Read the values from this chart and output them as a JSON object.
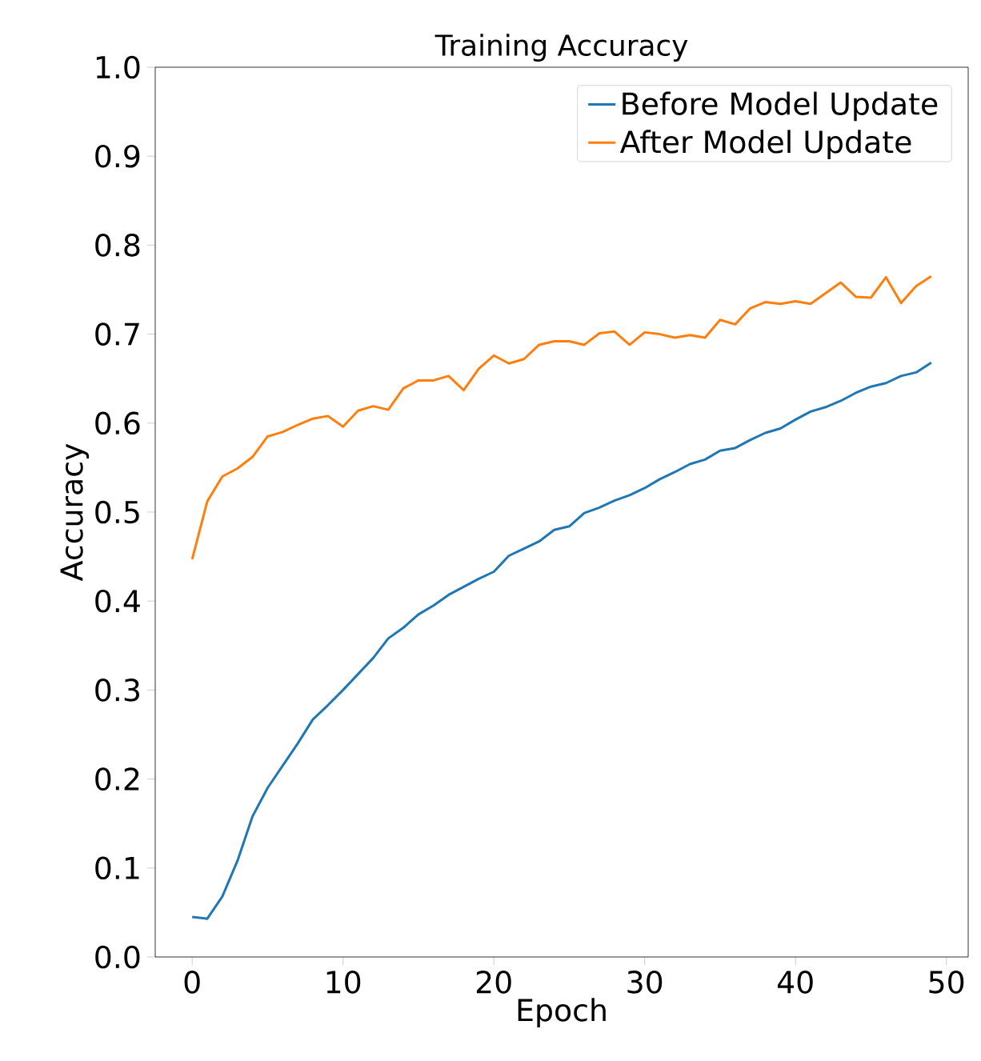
{
  "chart_data": {
    "type": "line",
    "title": "Training Accuracy",
    "xlabel": "Epoch",
    "ylabel": "Accuracy",
    "x": [
      0,
      1,
      2,
      3,
      4,
      5,
      6,
      7,
      8,
      9,
      10,
      11,
      12,
      13,
      14,
      15,
      16,
      17,
      18,
      19,
      20,
      21,
      22,
      23,
      24,
      25,
      26,
      27,
      28,
      29,
      30,
      31,
      32,
      33,
      34,
      35,
      36,
      37,
      38,
      39,
      40,
      41,
      42,
      43,
      44,
      45,
      46,
      47,
      48,
      49
    ],
    "series": [
      {
        "name": "Before Model Update",
        "color": "#1f77b4",
        "values": [
          0.045,
          0.043,
          0.068,
          0.108,
          0.158,
          0.19,
          0.215,
          0.24,
          0.267,
          0.283,
          0.3,
          0.318,
          0.336,
          0.358,
          0.37,
          0.385,
          0.395,
          0.407,
          0.416,
          0.425,
          0.433,
          0.451,
          0.459,
          0.467,
          0.48,
          0.484,
          0.499,
          0.505,
          0.513,
          0.519,
          0.527,
          0.537,
          0.545,
          0.554,
          0.559,
          0.569,
          0.572,
          0.581,
          0.589,
          0.594,
          0.604,
          0.613,
          0.618,
          0.625,
          0.634,
          0.641,
          0.645,
          0.653,
          0.657,
          0.668
        ]
      },
      {
        "name": "After Model Update",
        "color": "#ff7f0e",
        "values": [
          0.447,
          0.512,
          0.54,
          0.549,
          0.562,
          0.585,
          0.59,
          0.598,
          0.605,
          0.608,
          0.596,
          0.614,
          0.619,
          0.615,
          0.639,
          0.648,
          0.648,
          0.653,
          0.637,
          0.661,
          0.676,
          0.667,
          0.672,
          0.688,
          0.692,
          0.692,
          0.688,
          0.701,
          0.703,
          0.688,
          0.702,
          0.7,
          0.696,
          0.699,
          0.696,
          0.716,
          0.711,
          0.729,
          0.736,
          0.734,
          0.737,
          0.734,
          0.746,
          0.758,
          0.742,
          0.741,
          0.764,
          0.735,
          0.754,
          0.765
        ]
      }
    ],
    "xlim": [
      -2.45,
      51.45
    ],
    "ylim": [
      0,
      1
    ],
    "xticks": [
      0,
      10,
      20,
      30,
      40,
      50
    ],
    "yticks": [
      {
        "value": 0,
        "label": "0.0"
      },
      {
        "value": 0.1,
        "label": "0.1"
      },
      {
        "value": 0.2,
        "label": "0.2"
      },
      {
        "value": 0.3,
        "label": "0.3"
      },
      {
        "value": 0.4,
        "label": "0.4"
      },
      {
        "value": 0.5,
        "label": "0.5"
      },
      {
        "value": 0.6,
        "label": "0.6"
      },
      {
        "value": 0.7,
        "label": "0.7"
      },
      {
        "value": 0.8,
        "label": "0.8"
      },
      {
        "value": 0.9,
        "label": "0.9"
      },
      {
        "value": 1.0,
        "label": "1.0"
      }
    ],
    "legend": "top right",
    "grid": false
  }
}
